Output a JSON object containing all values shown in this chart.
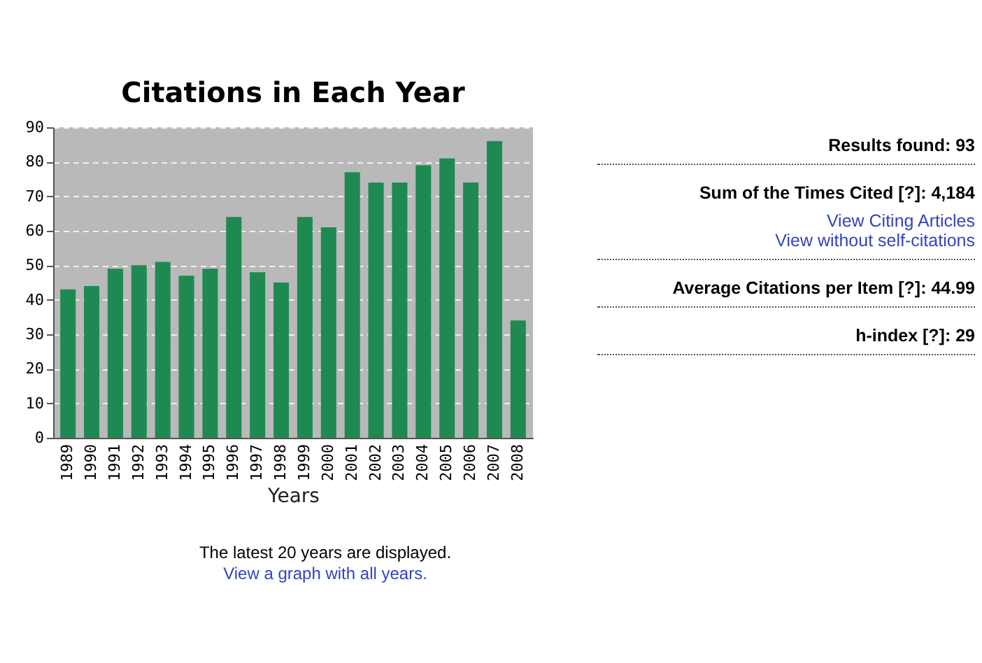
{
  "chart_data": [
    {
      "type": "bar",
      "title": "Citations in Each Year",
      "xlabel": "Years",
      "categories": [
        "1989",
        "1990",
        "1991",
        "1992",
        "1993",
        "1994",
        "1995",
        "1996",
        "1997",
        "1998",
        "1999",
        "2000",
        "2001",
        "2002",
        "2003",
        "2004",
        "2005",
        "2006",
        "2007",
        "2008"
      ],
      "values": [
        43,
        44,
        49,
        50,
        51,
        47,
        49,
        64,
        48,
        45,
        64,
        61,
        77,
        74,
        74,
        79,
        81,
        74,
        86,
        34
      ],
      "color": "#1e8a52",
      "ylim": [
        0,
        90
      ],
      "yticks": [
        0,
        10,
        20,
        30,
        40,
        50,
        60,
        70,
        80,
        90
      ],
      "grid": "y",
      "annotations": [
        "The latest 20 years are displayed.",
        "View a graph with all years."
      ]
    },
    {
      "type": "other",
      "annotations": [
        "Results found:  93",
        "Sum of the Times Cited [?]:  4,184",
        "View Citing Articles",
        "View without self-citations",
        "Average Citations per Item [?]:  44.99",
        "h-index [?]:  29"
      ]
    }
  ]
}
